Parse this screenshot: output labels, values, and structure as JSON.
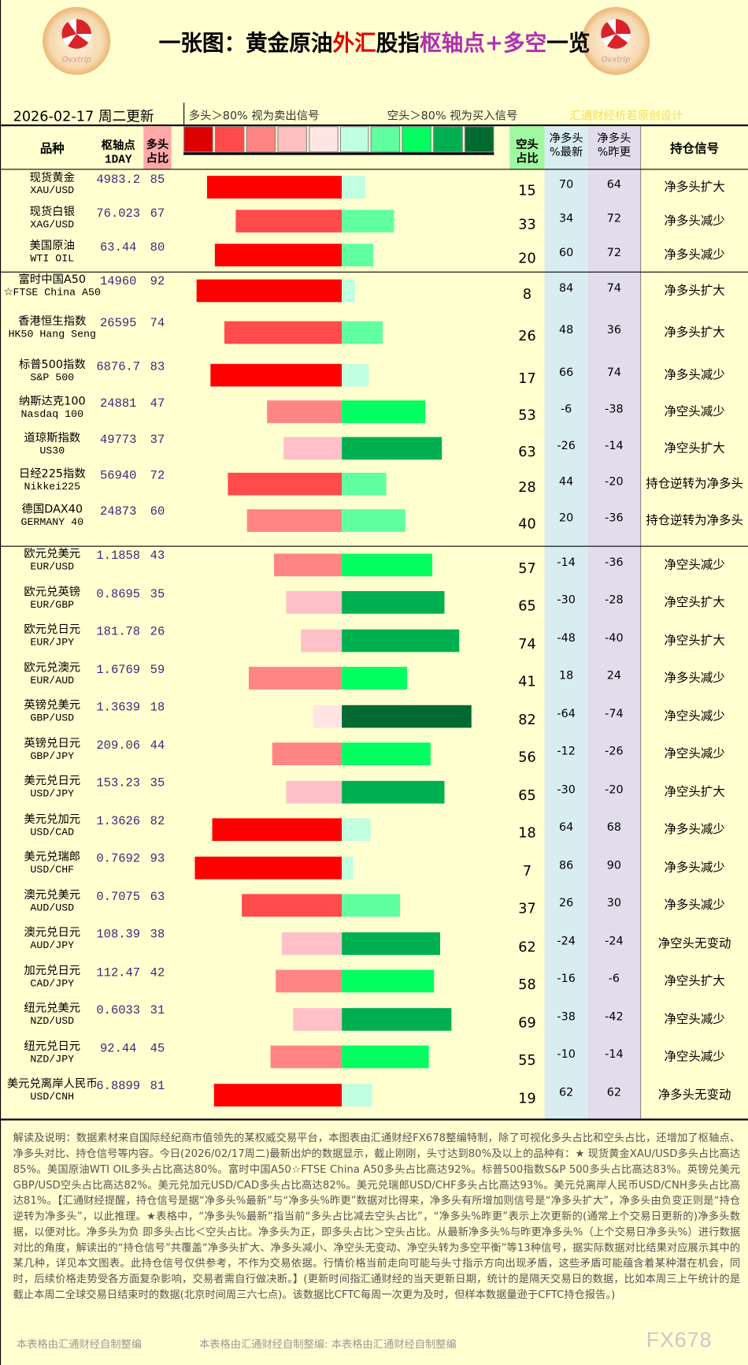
{
  "header": {
    "title_parts": [
      "一张图：黄金原油",
      "外汇",
      "股指",
      "枢轴点+多空",
      "一览"
    ],
    "logo_text": "Ovxtrip",
    "date": "2026-02-17 周二更新",
    "long_note": "多头＞80% 视为卖出信号",
    "short_note": "空头＞80% 视为买入信号",
    "credit": "汇通财经析若原创设计",
    "legend_colors": [
      "#dd0000",
      "#ff4b4b",
      "#ff8585",
      "#ffc0c0",
      "#ffe4e4",
      "#c0ffe0",
      "#60ffa0",
      "#00ff60",
      "#00b050",
      "#006a30"
    ]
  },
  "columns": {
    "name": "品种",
    "pivot": "枢轴点",
    "pivot_sub": "1DAY",
    "long": "多头",
    "long_sub": "占比",
    "short": "空头",
    "short_sub": "占比",
    "net_now": "净多头",
    "net_now_sub": "%最新",
    "net_prev": "净多头",
    "net_prev_sub": "%昨更",
    "signal": "持仓信号"
  },
  "rows": [
    {
      "cn": "现货黄金",
      "en": "XAU/USD",
      "pivot": "4983.2",
      "long": 85,
      "short": 15,
      "net_now": 70,
      "net_prev": 64,
      "signal": "净多头扩大"
    },
    {
      "cn": "现货白银",
      "en": "XAG/USD",
      "pivot": "76.023",
      "long": 67,
      "short": 33,
      "net_now": 34,
      "net_prev": 72,
      "signal": "净多头减少"
    },
    {
      "cn": "美国原油",
      "en": "WTI OIL",
      "pivot": "63.44",
      "long": 80,
      "short": 20,
      "net_now": 60,
      "net_prev": 72,
      "signal": "净多头减少"
    },
    {
      "cn": "富时中国A50",
      "en": "☆FTSE China A50",
      "pivot": "14960",
      "long": 92,
      "short": 8,
      "net_now": 84,
      "net_prev": 74,
      "signal": "净多头扩大"
    },
    {
      "cn": "香港恒生指数",
      "en": "HK50 Hang Seng",
      "pivot": "26595",
      "long": 74,
      "short": 26,
      "net_now": 48,
      "net_prev": 36,
      "signal": "净多头扩大"
    },
    {
      "cn": "标普500指数",
      "en": "S&P 500",
      "pivot": "6876.7",
      "long": 83,
      "short": 17,
      "net_now": 66,
      "net_prev": 74,
      "signal": "净多头减少"
    },
    {
      "cn": "纳斯达克100",
      "en": "Nasdaq 100",
      "pivot": "24881",
      "long": 47,
      "short": 53,
      "net_now": -6,
      "net_prev": -38,
      "signal": "净空头减少"
    },
    {
      "cn": "道琼斯指数",
      "en": "US30",
      "pivot": "49773",
      "long": 37,
      "short": 63,
      "net_now": -26,
      "net_prev": -14,
      "signal": "净空头扩大"
    },
    {
      "cn": "日经225指数",
      "en": "Nikkei225",
      "pivot": "56940",
      "long": 72,
      "short": 28,
      "net_now": 44,
      "net_prev": -20,
      "signal": "持仓逆转为净多头"
    },
    {
      "cn": "德国DAX40",
      "en": "GERMANY 40",
      "pivot": "24873",
      "long": 60,
      "short": 40,
      "net_now": 20,
      "net_prev": -36,
      "signal": "持仓逆转为净多头"
    },
    {
      "cn": "欧元兑美元",
      "en": "EUR/USD",
      "pivot": "1.1858",
      "long": 43,
      "short": 57,
      "net_now": -14,
      "net_prev": -36,
      "signal": "净空头减少"
    },
    {
      "cn": "欧元兑英镑",
      "en": "EUR/GBP",
      "pivot": "0.8695",
      "long": 35,
      "short": 65,
      "net_now": -30,
      "net_prev": -28,
      "signal": "净空头扩大"
    },
    {
      "cn": "欧元兑日元",
      "en": "EUR/JPY",
      "pivot": "181.78",
      "long": 26,
      "short": 74,
      "net_now": -48,
      "net_prev": -40,
      "signal": "净空头扩大"
    },
    {
      "cn": "欧元兑澳元",
      "en": "EUR/AUD",
      "pivot": "1.6769",
      "long": 59,
      "short": 41,
      "net_now": 18,
      "net_prev": 24,
      "signal": "净多头减少"
    },
    {
      "cn": "英镑兑美元",
      "en": "GBP/USD",
      "pivot": "1.3639",
      "long": 18,
      "short": 82,
      "net_now": -64,
      "net_prev": -74,
      "signal": "净空头减少"
    },
    {
      "cn": "英镑兑日元",
      "en": "GBP/JPY",
      "pivot": "209.06",
      "long": 44,
      "short": 56,
      "net_now": -12,
      "net_prev": -26,
      "signal": "净空头减少"
    },
    {
      "cn": "美元兑日元",
      "en": "USD/JPY",
      "pivot": "153.23",
      "long": 35,
      "short": 65,
      "net_now": -30,
      "net_prev": -20,
      "signal": "净空头扩大"
    },
    {
      "cn": "美元兑加元",
      "en": "USD/CAD",
      "pivot": "1.3626",
      "long": 82,
      "short": 18,
      "net_now": 64,
      "net_prev": 68,
      "signal": "净多头减少"
    },
    {
      "cn": "美元兑瑞郎",
      "en": "USD/CHF",
      "pivot": "0.7692",
      "long": 93,
      "short": 7,
      "net_now": 86,
      "net_prev": 90,
      "signal": "净多头减少"
    },
    {
      "cn": "澳元兑美元",
      "en": "AUD/USD",
      "pivot": "0.7075",
      "long": 63,
      "short": 37,
      "net_now": 26,
      "net_prev": 30,
      "signal": "净多头减少"
    },
    {
      "cn": "澳元兑日元",
      "en": "AUD/JPY",
      "pivot": "108.39",
      "long": 38,
      "short": 62,
      "net_now": -24,
      "net_prev": -24,
      "signal": "净空头无变动"
    },
    {
      "cn": "加元兑日元",
      "en": "CAD/JPY",
      "pivot": "112.47",
      "long": 42,
      "short": 58,
      "net_now": -16,
      "net_prev": -6,
      "signal": "净空头扩大"
    },
    {
      "cn": "纽元兑美元",
      "en": "NZD/USD",
      "pivot": "0.6033",
      "long": 31,
      "short": 69,
      "net_now": -38,
      "net_prev": -42,
      "signal": "净空头减少"
    },
    {
      "cn": "纽元兑日元",
      "en": "NZD/JPY",
      "pivot": "92.44",
      "long": 45,
      "short": 55,
      "net_now": -10,
      "net_prev": -14,
      "signal": "净空头减少"
    },
    {
      "cn": "美元兑离岸人民币",
      "en": "USD/CNH",
      "pivot": "6.8899",
      "long": 81,
      "short": 19,
      "net_now": 62,
      "net_prev": 62,
      "signal": "净多头无变动"
    }
  ],
  "footer": {
    "text": "解读及说明：数据素材来自国际经纪商市值领先的某权威交易平台，本图表由汇通财经FX678整编特制，除了可视化多头占比和空头占比，还增加了枢轴点、净多头对比、持仓信号等内容。今日(2026/02/17周二)最新出炉的数据显示，截止刚刚，头寸达到80%及以上的品种有：★ 现货黄金XAU/USD多头占比高达85%。美国原油WTI OIL多头占比高达80%。富时中国A50☆FTSE China A50多头占比高达92%。标普500指数S&P 500多头占比高达83%。英镑兑美元GBP/USD空头占比高达82%。美元兑加元USD/CAD多头占比高达82%。美元兑瑞郎USD/CHF多头占比高达93%。美元兑离岸人民币USD/CNH多头占比高达81%。【汇通财经提醒，持仓信号是据“净多头%最新”与“净多头%昨更”数据对比得来，净多头有所增加则信号是“净多头扩大”，净多头由负变正则是“持仓逆转为净多头”，以此推理。★表格中，“净多头%最新”指当前“多头占比减去空头占比”，“净多头%昨更”表示上次更新的(通常上个交易日更新的)净多头数据，以便对比。净多头为负 即多头占比＜空头占比。净多头为正，即多头占比＞空头占比。从最新净多头%与昨更净多头%（上个交易日净多头%）进行数据对比的角度，解读出的“持仓信号”共覆盖“净多头扩大、净多头减小、净空头无变动、净空头转为多空平衡”等13种信号，据实际数据对比结果对应展示其中的某几种，详见本文图表。此持仓信号仅供参考，不作为交易依据。行情价格当前走向可能与头寸指示方向出现矛盾，这些矛盾可能蕴含着某种潜在机会，同时，后续价格走势受各方面复杂影响，交易者需自行做决断。】(更新时间指汇通财经的当天更新日期，统计的是隔天交易日的数据，比如本周三上午统计的是截止本周二全球交易日结束时的数据(北京时间周三六七点)。该数据比CFTC每周一次更为及时，但样本数据量逊于CFTC持仓报告。)",
    "watermarks": [
      "本表格由汇通财经自制整编",
      "本表格由汇通财经自制整编: 本表格由汇通财经自制整编"
    ],
    "brand": "FX678"
  }
}
